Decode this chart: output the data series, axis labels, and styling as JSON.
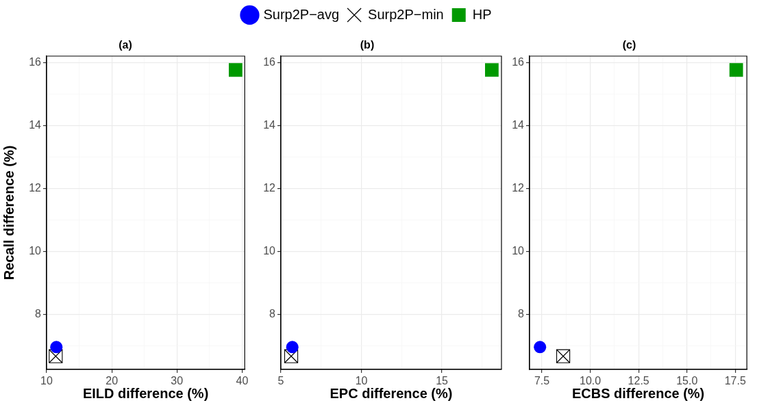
{
  "chart_data": [
    {
      "type": "scatter",
      "title": "(a)",
      "xlabel": "EILD difference (%)",
      "ylabel": "Recall difference (%)",
      "xlim": [
        10,
        40.4
      ],
      "xticks": [
        10,
        {
          "value": 15,
          "label": null
        },
        20,
        {
          "value": 25,
          "label": null
        },
        30,
        {
          "value": 35,
          "label": null
        },
        40
      ],
      "ylim": [
        6.25,
        16.2
      ],
      "yticks": [
        {
          "value": 7,
          "label": null
        },
        8,
        {
          "value": 9,
          "label": null
        },
        10,
        {
          "value": 11,
          "label": null
        },
        12,
        {
          "value": 13,
          "label": null
        },
        14,
        {
          "value": 15,
          "label": null
        },
        16
      ],
      "grid": true,
      "series": [
        {
          "color": "#0000ff",
          "marker": "circle",
          "x": [
            11.5
          ],
          "values": [
            6.96
          ]
        },
        {
          "color": "#000000",
          "x": [
            11.4
          ],
          "values": [
            6.67
          ]
        },
        {
          "color": "#009900",
          "marker": "square",
          "x": [
            39.0
          ],
          "values": [
            15.76
          ]
        }
      ]
    },
    {
      "type": "scatter",
      "title": "(b)",
      "xlabel": "EPC difference (%)",
      "legend": "top",
      "xlim": [
        5,
        18.7
      ],
      "xticks": [
        5,
        {
          "value": 7.5,
          "label": null
        },
        10,
        {
          "value": 12.5,
          "label": null
        },
        15,
        {
          "value": 17.5,
          "label": null
        }
      ],
      "ylim": [
        6.25,
        16.2
      ],
      "yticks": [
        {
          "value": 7,
          "label": null
        },
        8,
        {
          "value": 9,
          "label": null
        },
        10,
        {
          "value": 11,
          "label": null
        },
        12,
        {
          "value": 13,
          "label": null
        },
        14,
        {
          "value": 15,
          "label": null
        },
        16
      ],
      "grid": true,
      "series": [
        {
          "name": "Surp2P−avg",
          "color": "#0000ff",
          "marker": "circle",
          "x": [
            5.71
          ],
          "values": [
            6.96
          ]
        },
        {
          "name": "Surp2P−min",
          "color": "#000000",
          "x": [
            5.64
          ],
          "values": [
            6.67
          ]
        },
        {
          "name": "HP",
          "color": "#009900",
          "marker": "square",
          "x": [
            18.1
          ],
          "values": [
            15.76
          ]
        }
      ]
    },
    {
      "type": "scatter",
      "title": "(c)",
      "xlabel": "ECBS difference (%)",
      "xlim": [
        6.86,
        18.1
      ],
      "xticks": [
        7.5,
        {
          "value": 8.75,
          "label": null
        },
        {
          "value": 10,
          "label": "10.0"
        },
        {
          "value": 11.25,
          "label": null
        },
        12.5,
        {
          "value": 13.75,
          "label": null
        },
        {
          "value": 15,
          "label": "15.0"
        },
        {
          "value": 16.25,
          "label": null
        },
        17.5
      ],
      "ylim": [
        6.25,
        16.2
      ],
      "yticks": [
        {
          "value": 7,
          "label": null
        },
        8,
        {
          "value": 9,
          "label": null
        },
        10,
        {
          "value": 11,
          "label": null
        },
        12,
        {
          "value": 13,
          "label": null
        },
        14,
        {
          "value": 15,
          "label": null
        },
        16
      ],
      "grid": true,
      "series": [
        {
          "color": "#0000ff",
          "marker": "circle",
          "x": [
            7.4
          ],
          "values": [
            6.96
          ]
        },
        {
          "color": "#000000",
          "x": [
            8.6
          ],
          "values": [
            6.67
          ]
        },
        {
          "color": "#009900",
          "marker": "square",
          "x": [
            17.55
          ],
          "values": [
            15.76
          ]
        }
      ]
    }
  ]
}
